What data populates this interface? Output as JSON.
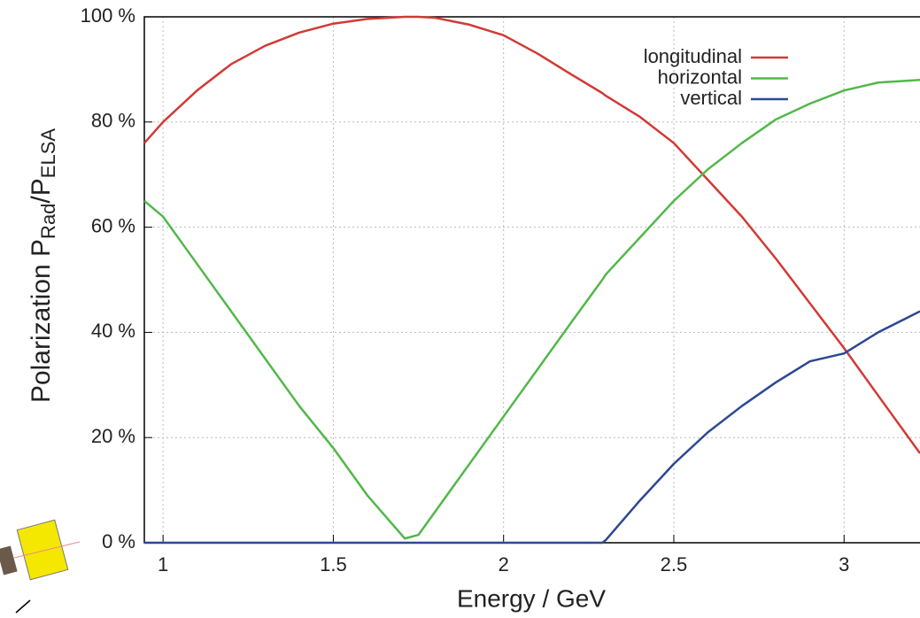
{
  "chart_data": {
    "type": "line",
    "xlabel": "Energy / GeV",
    "ylabel_parts": [
      "Polarization P",
      "Rad",
      "/P",
      "ELSA"
    ],
    "x": [
      0.945,
      1.0,
      1.1,
      1.2,
      1.3,
      1.4,
      1.5,
      1.6,
      1.71,
      1.75,
      1.8,
      1.9,
      2.0,
      2.1,
      2.2,
      2.29,
      2.3,
      2.4,
      2.5,
      2.6,
      2.7,
      2.8,
      2.9,
      3.0,
      3.1,
      3.223
    ],
    "series": [
      {
        "name": "longitudinal",
        "color": "#d23a34",
        "values": [
          76,
          80,
          86,
          91,
          94.5,
          97,
          98.7,
          99.6,
          100,
          100,
          99.8,
          98.5,
          96.5,
          93,
          89,
          85.5,
          85,
          81,
          76,
          69,
          62,
          54,
          45.5,
          37,
          28,
          17
        ]
      },
      {
        "name": "horizontal",
        "color": "#52b84a",
        "values": [
          65,
          62,
          53,
          44,
          35,
          26,
          18,
          9,
          0.8,
          1.5,
          6,
          15,
          24,
          33,
          42,
          50,
          51,
          58,
          65,
          71,
          76,
          80.5,
          83.5,
          86,
          87.5,
          88
        ]
      },
      {
        "name": "vertical",
        "color": "#2d4894",
        "values": [
          0,
          0,
          0,
          0,
          0,
          0,
          0,
          0,
          0,
          0,
          0,
          0,
          0,
          0,
          0,
          0,
          0.5,
          8,
          15,
          21,
          26,
          30.5,
          34.5,
          36,
          40,
          44
        ]
      }
    ],
    "xlim": [
      0.945,
      3.223
    ],
    "ylim": [
      0,
      100
    ],
    "xticks": [
      1,
      1.5,
      2,
      2.5,
      3
    ],
    "yticks": [
      {
        "value": 0,
        "label": "0 %"
      },
      {
        "value": 20,
        "label": "20 %"
      },
      {
        "value": 40,
        "label": "40 %"
      },
      {
        "value": 60,
        "label": "60 %"
      },
      {
        "value": 80,
        "label": "80 %"
      },
      {
        "value": 100,
        "label": "100 %"
      }
    ],
    "grid": true,
    "legend": "top-right"
  }
}
